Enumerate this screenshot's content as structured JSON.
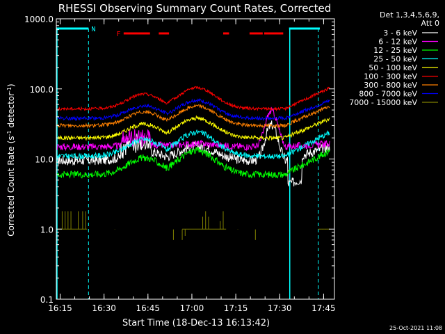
{
  "chart_data": {
    "type": "line",
    "title": "RHESSI Observing Summary Count Rates, Corrected",
    "xlabel": "Start Time (18-Dec-13 16:13:42)",
    "ylabel_main": "Corrected Count Rate (s",
    "ylabel_sup1": "-1",
    "ylabel_mid": " detector",
    "ylabel_sup2": "-1",
    "ylabel_end": ")",
    "y_scale": "log",
    "ylim": [
      0.1,
      1000
    ],
    "xlim_minutes": [
      0,
      95
    ],
    "x_ticks": [
      {
        "m": 1.3,
        "label": "16:15"
      },
      {
        "m": 16.3,
        "label": "16:30"
      },
      {
        "m": 31.3,
        "label": "16:45"
      },
      {
        "m": 46.3,
        "label": "17:00"
      },
      {
        "m": 61.3,
        "label": "17:15"
      },
      {
        "m": 76.3,
        "label": "17:30"
      },
      {
        "m": 91.3,
        "label": "17:45"
      }
    ],
    "y_ticks": [
      {
        "v": 1000,
        "label": "1000.0"
      },
      {
        "v": 100,
        "label": "100.0"
      },
      {
        "v": 10,
        "label": "10.0"
      },
      {
        "v": 1,
        "label": "1.0"
      },
      {
        "v": 0.1,
        "label": "0.1"
      }
    ],
    "legend_header": [
      "Det 1,3,4,5,6,9,",
      "Att 0"
    ],
    "legend_position": "right",
    "series": [
      {
        "name": "3 - 6 keV",
        "color": "#ffffff",
        "base": 9.5,
        "amp": 1.6,
        "noise": 0.07
      },
      {
        "name": "6 - 12 keV",
        "color": "#ff00ff",
        "base": 15,
        "amp": 1.1,
        "noise": 0.05
      },
      {
        "name": "12 - 25 keV",
        "color": "#00ff00",
        "base": 6,
        "amp": 2.2,
        "noise": 0.05
      },
      {
        "name": "25 - 50 keV",
        "color": "#00ffff",
        "base": 11,
        "amp": 2.2,
        "noise": 0.04
      },
      {
        "name": "50 - 100 keV",
        "color": "#ffff00",
        "base": 20,
        "amp": 1.9,
        "noise": 0.03
      },
      {
        "name": "100 - 300 keV",
        "color": "#ff0000",
        "base": 52,
        "amp": 2.0,
        "noise": 0.02
      },
      {
        "name": "300 - 800 keV",
        "color": "#ff8000",
        "base": 30,
        "amp": 1.9,
        "noise": 0.025
      },
      {
        "name": "800 - 7000 keV",
        "color": "#0000ff",
        "base": 38,
        "amp": 1.8,
        "noise": 0.025
      },
      {
        "name": "7000 - 15000 keV",
        "color": "#808000",
        "base": 1.0,
        "amp": 1.0,
        "noise": 0
      }
    ],
    "flags": {
      "night_label": "N",
      "flare_label": "F",
      "night_color": "#00ffff",
      "flare_color": "#ff0000",
      "night_intervals_min": [
        [
          0,
          11
        ],
        [
          79.5,
          90
        ]
      ],
      "flare_intervals_min": [
        [
          23,
          32
        ],
        [
          35,
          38.5
        ],
        [
          57,
          59
        ],
        [
          66,
          70.5
        ],
        [
          71,
          77.5
        ]
      ],
      "night_boundaries_min": [
        11,
        89.5
      ],
      "night_edges_solid_min": [
        0,
        79.5
      ]
    }
  },
  "footer": {
    "timestamp": "25-Oct-2021 11:08"
  }
}
